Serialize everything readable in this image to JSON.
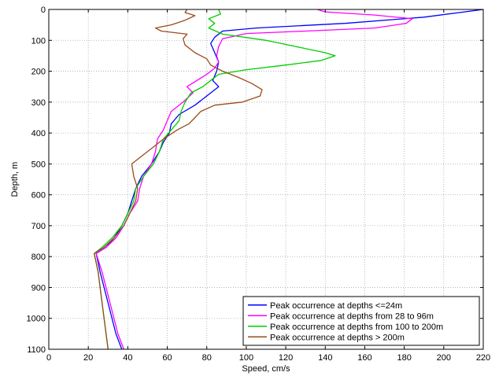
{
  "chart_data": {
    "type": "line",
    "title": "",
    "xlabel": "Speed, cm/s",
    "ylabel": "Depth, m",
    "xlim": [
      0,
      220
    ],
    "ylim": [
      0,
      1100
    ],
    "y_reversed": true,
    "x_ticks": [
      0,
      20,
      40,
      60,
      80,
      100,
      120,
      140,
      160,
      180,
      200,
      220
    ],
    "y_ticks": [
      0,
      100,
      200,
      300,
      400,
      500,
      600,
      700,
      800,
      900,
      1000,
      1100
    ],
    "grid": true,
    "legend_placement": "bottom-right",
    "series": [
      {
        "name": "Peak occurrence at depths <=24m",
        "color": "#0000ff",
        "points": [
          [
            220,
            0
          ],
          [
            190,
            25
          ],
          [
            150,
            45
          ],
          [
            105,
            60
          ],
          [
            88,
            70
          ],
          [
            84,
            90
          ],
          [
            82,
            110
          ],
          [
            84,
            140
          ],
          [
            86,
            170
          ],
          [
            85,
            200
          ],
          [
            83,
            230
          ],
          [
            86,
            250
          ],
          [
            80,
            280
          ],
          [
            74,
            310
          ],
          [
            66,
            340
          ],
          [
            62,
            370
          ],
          [
            61,
            400
          ],
          [
            58,
            430
          ],
          [
            56,
            460
          ],
          [
            52,
            500
          ],
          [
            47,
            540
          ],
          [
            44,
            580
          ],
          [
            42,
            620
          ],
          [
            40,
            660
          ],
          [
            37,
            700
          ],
          [
            33,
            740
          ],
          [
            29,
            770
          ],
          [
            24,
            790
          ],
          [
            26,
            850
          ],
          [
            30,
            950
          ],
          [
            34,
            1050
          ],
          [
            37,
            1100
          ]
        ]
      },
      {
        "name": "Peak occurrence at depths from 28 to 96m",
        "color": "#ff00ff",
        "points": [
          [
            136,
            0
          ],
          [
            140,
            8
          ],
          [
            165,
            18
          ],
          [
            184,
            30
          ],
          [
            181,
            45
          ],
          [
            165,
            60
          ],
          [
            130,
            70
          ],
          [
            100,
            78
          ],
          [
            88,
            95
          ],
          [
            86,
            120
          ],
          [
            85,
            150
          ],
          [
            86,
            170
          ],
          [
            84,
            190
          ],
          [
            80,
            210
          ],
          [
            75,
            230
          ],
          [
            70,
            250
          ],
          [
            73,
            270
          ],
          [
            68,
            300
          ],
          [
            62,
            330
          ],
          [
            60,
            360
          ],
          [
            58,
            390
          ],
          [
            55,
            420
          ],
          [
            54,
            460
          ],
          [
            52,
            500
          ],
          [
            48,
            540
          ],
          [
            46,
            580
          ],
          [
            45,
            620
          ],
          [
            41,
            660
          ],
          [
            38,
            700
          ],
          [
            34,
            740
          ],
          [
            29,
            770
          ],
          [
            24,
            790
          ],
          [
            27,
            850
          ],
          [
            31,
            950
          ],
          [
            35,
            1050
          ],
          [
            38,
            1100
          ]
        ]
      },
      {
        "name": "Peak occurrence at depths from 100 to 200m",
        "color": "#00cc00",
        "points": [
          [
            86,
            0
          ],
          [
            87,
            15
          ],
          [
            81,
            30
          ],
          [
            84,
            45
          ],
          [
            81,
            60
          ],
          [
            88,
            80
          ],
          [
            110,
            100
          ],
          [
            125,
            120
          ],
          [
            140,
            140
          ],
          [
            145,
            150
          ],
          [
            138,
            165
          ],
          [
            120,
            180
          ],
          [
            100,
            195
          ],
          [
            86,
            210
          ],
          [
            82,
            230
          ],
          [
            78,
            250
          ],
          [
            72,
            270
          ],
          [
            69,
            300
          ],
          [
            67,
            330
          ],
          [
            66,
            360
          ],
          [
            62,
            390
          ],
          [
            58,
            420
          ],
          [
            56,
            460
          ],
          [
            53,
            500
          ],
          [
            48,
            540
          ],
          [
            44,
            580
          ],
          [
            43,
            620
          ],
          [
            40,
            660
          ],
          [
            37,
            700
          ],
          [
            32,
            740
          ],
          [
            27,
            770
          ],
          [
            23,
            790
          ],
          [
            25,
            850
          ],
          [
            27,
            950
          ],
          [
            29,
            1050
          ],
          [
            30,
            1100
          ]
        ]
      },
      {
        "name": "Peak occurrence at depths > 200m",
        "color": "#994c1a",
        "points": [
          [
            70,
            0
          ],
          [
            69,
            10
          ],
          [
            74,
            20
          ],
          [
            69,
            35
          ],
          [
            62,
            50
          ],
          [
            54,
            60
          ],
          [
            57,
            70
          ],
          [
            70,
            80
          ],
          [
            68,
            95
          ],
          [
            69,
            115
          ],
          [
            74,
            140
          ],
          [
            80,
            160
          ],
          [
            82,
            180
          ],
          [
            88,
            200
          ],
          [
            96,
            220
          ],
          [
            103,
            240
          ],
          [
            108,
            260
          ],
          [
            107,
            280
          ],
          [
            98,
            300
          ],
          [
            84,
            310
          ],
          [
            77,
            330
          ],
          [
            74,
            350
          ],
          [
            71,
            370
          ],
          [
            65,
            390
          ],
          [
            58,
            420
          ],
          [
            52,
            450
          ],
          [
            46,
            480
          ],
          [
            42,
            500
          ],
          [
            43,
            540
          ],
          [
            45,
            580
          ],
          [
            44,
            620
          ],
          [
            41,
            660
          ],
          [
            38,
            700
          ],
          [
            33,
            740
          ],
          [
            28,
            770
          ],
          [
            23,
            790
          ],
          [
            25,
            850
          ],
          [
            27,
            950
          ],
          [
            29,
            1050
          ],
          [
            30,
            1100
          ]
        ]
      }
    ]
  }
}
